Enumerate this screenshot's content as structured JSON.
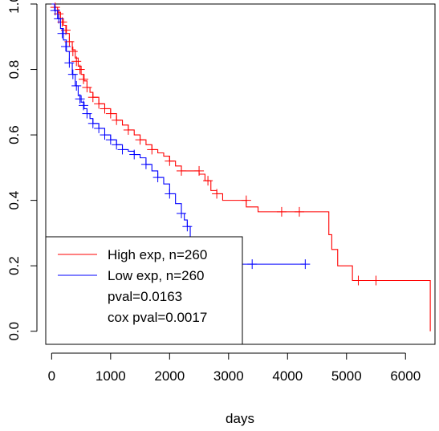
{
  "chart_data": {
    "type": "line",
    "subtype": "kaplan-meier",
    "xlabel": "days",
    "ylabel": "",
    "xlim": [
      -100,
      6500
    ],
    "ylim": [
      -0.04,
      1.0
    ],
    "x_ticks": [
      "0",
      "1000",
      "2000",
      "3000",
      "4000",
      "5000",
      "6000"
    ],
    "y_ticks": [
      "0.0",
      "0.2",
      "0.4",
      "0.6",
      "0.8",
      "1.0"
    ],
    "legend_position": "bottom-left",
    "legend_entries": [
      "High exp, n=260",
      "Low exp, n=260",
      "pval=0.0163",
      "cox pval=0.0017"
    ],
    "series": [
      {
        "name": "High exp, n=260",
        "color": "#ff0000",
        "x": [
          0,
          50,
          100,
          150,
          200,
          250,
          300,
          350,
          400,
          450,
          500,
          550,
          600,
          650,
          700,
          800,
          900,
          1000,
          1100,
          1200,
          1300,
          1400,
          1500,
          1600,
          1700,
          1800,
          1900,
          2000,
          2100,
          2200,
          2300,
          2400,
          2500,
          2600,
          2700,
          2800,
          2900,
          3100,
          3300,
          3500,
          4000,
          4500,
          4700,
          4750,
          4800,
          4850,
          5100,
          5200,
          5500,
          6000,
          6400,
          6420
        ],
        "y": [
          1.0,
          0.99,
          0.975,
          0.955,
          0.935,
          0.91,
          0.885,
          0.86,
          0.835,
          0.81,
          0.785,
          0.765,
          0.745,
          0.73,
          0.715,
          0.695,
          0.68,
          0.665,
          0.645,
          0.63,
          0.615,
          0.6,
          0.585,
          0.57,
          0.555,
          0.545,
          0.535,
          0.52,
          0.505,
          0.49,
          0.49,
          0.49,
          0.48,
          0.46,
          0.43,
          0.42,
          0.4,
          0.4,
          0.38,
          0.365,
          0.365,
          0.365,
          0.295,
          0.25,
          0.25,
          0.2,
          0.155,
          0.155,
          0.155,
          0.155,
          0.155,
          0.0
        ],
        "censored_x": [
          60,
          120,
          180,
          240,
          300,
          360,
          420,
          480,
          540,
          600,
          700,
          800,
          900,
          1000,
          1100,
          1300,
          1500,
          1700,
          2000,
          2200,
          2500,
          2650,
          2800,
          3300,
          3900,
          4200,
          5200,
          5500
        ],
        "censored_y": [
          0.99,
          0.97,
          0.945,
          0.92,
          0.885,
          0.855,
          0.825,
          0.8,
          0.77,
          0.745,
          0.715,
          0.695,
          0.68,
          0.665,
          0.645,
          0.615,
          0.585,
          0.555,
          0.52,
          0.49,
          0.49,
          0.46,
          0.42,
          0.4,
          0.365,
          0.365,
          0.155,
          0.155
        ]
      },
      {
        "name": "Low exp, n=260",
        "color": "#0000ff",
        "x": [
          0,
          50,
          100,
          150,
          200,
          250,
          300,
          350,
          400,
          450,
          500,
          550,
          600,
          650,
          700,
          800,
          900,
          1000,
          1100,
          1200,
          1300,
          1400,
          1500,
          1600,
          1700,
          1800,
          1900,
          2000,
          2100,
          2200,
          2250,
          2300,
          2350,
          2400,
          2500,
          2600,
          2700,
          2900,
          3000,
          3200,
          3400,
          3600,
          4000,
          4300
        ],
        "y": [
          1.0,
          0.98,
          0.955,
          0.925,
          0.89,
          0.855,
          0.82,
          0.785,
          0.75,
          0.72,
          0.7,
          0.68,
          0.665,
          0.65,
          0.635,
          0.62,
          0.6,
          0.585,
          0.57,
          0.555,
          0.55,
          0.54,
          0.53,
          0.51,
          0.49,
          0.47,
          0.45,
          0.42,
          0.39,
          0.36,
          0.34,
          0.32,
          0.27,
          0.27,
          0.27,
          0.27,
          0.23,
          0.205,
          0.205,
          0.205,
          0.205,
          0.205,
          0.205,
          0.205
        ],
        "censored_x": [
          60,
          120,
          180,
          240,
          300,
          360,
          420,
          480,
          540,
          600,
          700,
          800,
          900,
          1000,
          1100,
          1200,
          1400,
          1600,
          1800,
          2000,
          2200,
          2300,
          2800,
          3400,
          4300
        ],
        "censored_y": [
          0.98,
          0.955,
          0.91,
          0.87,
          0.82,
          0.785,
          0.75,
          0.71,
          0.69,
          0.665,
          0.635,
          0.62,
          0.6,
          0.585,
          0.57,
          0.555,
          0.54,
          0.51,
          0.47,
          0.42,
          0.36,
          0.32,
          0.205,
          0.205,
          0.205
        ]
      }
    ]
  }
}
